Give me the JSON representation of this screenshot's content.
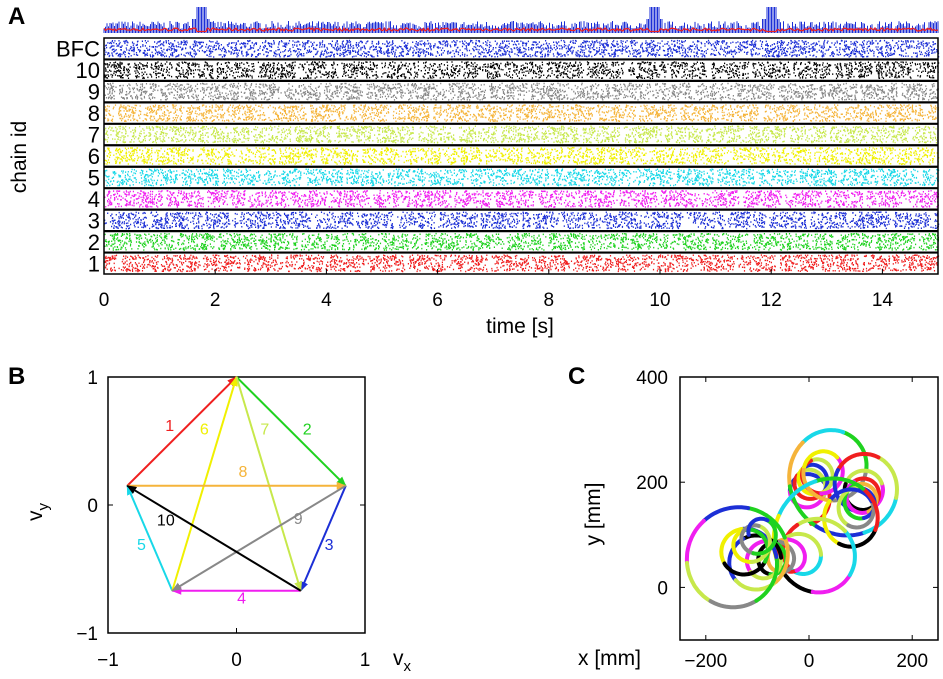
{
  "figure": {
    "panels": [
      {
        "letter": "A",
        "chart_type": "raster",
        "xlabel": "time [s]",
        "ylabel": "chain id",
        "xlim": [
          0,
          15
        ],
        "xticks": [
          "0",
          "2",
          "4",
          "6",
          "8",
          "10",
          "12",
          "14"
        ],
        "row_labels": [
          "BFC",
          "10",
          "9",
          "8",
          "7",
          "6",
          "5",
          "4",
          "3",
          "2",
          "1"
        ],
        "row_colors": [
          "#1c2fd6",
          "#000000",
          "#888888",
          "#f5b43a",
          "#c7e84b",
          "#f0f000",
          "#18d8e8",
          "#f01ef0",
          "#1c2fd6",
          "#1fd21f",
          "#f01f1f"
        ],
        "top_trace_colors": [
          "#1c2fd6",
          "#f01f1f"
        ],
        "burst_times": [
          1.75,
          9.9,
          12.0
        ]
      },
      {
        "letter": "B",
        "chart_type": "vector-diagram",
        "xlabel": "v",
        "xlabel_sub": "x",
        "ylabel": "v",
        "ylabel_sub": "y",
        "xlim": [
          -1,
          1
        ],
        "ylim": [
          -1,
          1
        ],
        "xticks": [
          "−1",
          "0",
          "1"
        ],
        "yticks": [
          "1",
          "0",
          "−1"
        ],
        "arrows": [
          {
            "label": "1",
            "color": "#f01f1f",
            "from": [
              -0.85,
              0.15
            ],
            "to": [
              0.0,
              1.0
            ]
          },
          {
            "label": "2",
            "color": "#1fd21f",
            "from": [
              0.0,
              1.0
            ],
            "to": [
              0.85,
              0.15
            ]
          },
          {
            "label": "3",
            "color": "#1c2fd6",
            "from": [
              0.85,
              0.15
            ],
            "to": [
              0.5,
              -0.67
            ]
          },
          {
            "label": "4",
            "color": "#f01ef0",
            "from": [
              0.5,
              -0.67
            ],
            "to": [
              -0.5,
              -0.67
            ]
          },
          {
            "label": "5",
            "color": "#18d8e8",
            "from": [
              -0.5,
              -0.67
            ],
            "to": [
              -0.85,
              0.15
            ]
          },
          {
            "label": "6",
            "color": "#f0f000",
            "from": [
              -0.5,
              -0.67
            ],
            "to": [
              0.0,
              1.0
            ]
          },
          {
            "label": "7",
            "color": "#c7e84b",
            "from": [
              0.0,
              1.0
            ],
            "to": [
              0.5,
              -0.67
            ]
          },
          {
            "label": "8",
            "color": "#f5b43a",
            "from": [
              -0.85,
              0.15
            ],
            "to": [
              0.85,
              0.15
            ]
          },
          {
            "label": "9",
            "color": "#888888",
            "from": [
              0.85,
              0.15
            ],
            "to": [
              -0.5,
              -0.67
            ]
          },
          {
            "label": "10",
            "color": "#000000",
            "from": [
              0.5,
              -0.67
            ],
            "to": [
              -0.85,
              0.15
            ]
          }
        ]
      },
      {
        "letter": "C",
        "chart_type": "trajectory",
        "xlabel": "x [mm]",
        "ylabel": "y [mm]",
        "xlim": [
          -250,
          250
        ],
        "ylim": [
          -100,
          400
        ],
        "xticks": [
          "−200",
          "0",
          "200"
        ],
        "yticks": [
          "400",
          "200",
          "0"
        ],
        "x_tick_values": [
          -200,
          0,
          200
        ],
        "y_tick_values": [
          400,
          200,
          0
        ]
      }
    ]
  },
  "chart_data": [
    {
      "type": "scatter",
      "title": "",
      "xlabel": "time [s]",
      "ylabel": "chain id",
      "x_range": [
        0,
        15
      ],
      "categories": [
        "BFC",
        "10",
        "9",
        "8",
        "7",
        "6",
        "5",
        "4",
        "3",
        "2",
        "1"
      ],
      "grid": false
    },
    {
      "type": "line",
      "title": "",
      "xlabel": "v_x",
      "ylabel": "v_y",
      "x_range": [
        -1,
        1
      ],
      "y_range": [
        -1,
        1
      ],
      "series": [
        {
          "name": "1",
          "x": [
            -0.85,
            0.0
          ],
          "y": [
            0.15,
            1.0
          ]
        },
        {
          "name": "2",
          "x": [
            0.0,
            0.85
          ],
          "y": [
            1.0,
            0.15
          ]
        },
        {
          "name": "3",
          "x": [
            0.85,
            0.5
          ],
          "y": [
            0.15,
            -0.67
          ]
        },
        {
          "name": "4",
          "x": [
            0.5,
            -0.5
          ],
          "y": [
            -0.67,
            -0.67
          ]
        },
        {
          "name": "5",
          "x": [
            -0.5,
            -0.85
          ],
          "y": [
            -0.67,
            0.15
          ]
        },
        {
          "name": "6",
          "x": [
            -0.5,
            0.0
          ],
          "y": [
            -0.67,
            1.0
          ]
        },
        {
          "name": "7",
          "x": [
            0.0,
            0.5
          ],
          "y": [
            1.0,
            -0.67
          ]
        },
        {
          "name": "8",
          "x": [
            -0.85,
            0.85
          ],
          "y": [
            0.15,
            0.15
          ]
        },
        {
          "name": "9",
          "x": [
            0.85,
            -0.5
          ],
          "y": [
            0.15,
            -0.67
          ]
        },
        {
          "name": "10",
          "x": [
            0.5,
            -0.85
          ],
          "y": [
            -0.67,
            0.15
          ]
        }
      ]
    },
    {
      "type": "line",
      "title": "",
      "xlabel": "x [mm]",
      "ylabel": "y [mm]",
      "x_range": [
        -250,
        250
      ],
      "y_range": [
        -100,
        400
      ],
      "grid": false
    }
  ]
}
